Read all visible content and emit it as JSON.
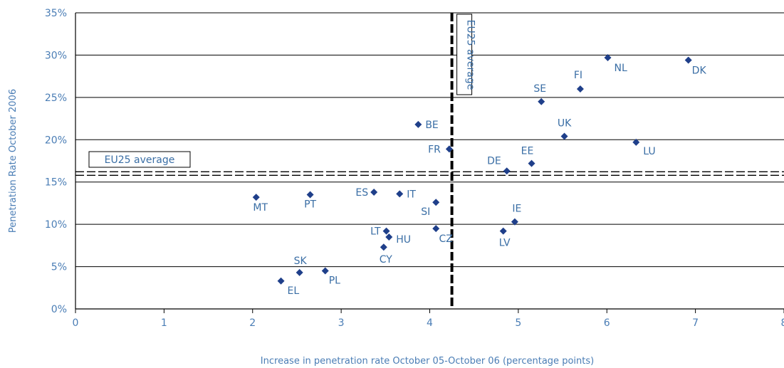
{
  "chart_data": {
    "type": "scatter",
    "xlabel": "Increase in penetration rate October 05-October 06 (percentage points)",
    "ylabel": "Penetration Rate October 2006",
    "xlim": [
      0,
      8
    ],
    "ylim": [
      0,
      35
    ],
    "x_ticks": [
      "0",
      "1",
      "2",
      "3",
      "4",
      "5",
      "6",
      "7",
      "8"
    ],
    "y_ticks": [
      "0%",
      "5%",
      "10%",
      "15%",
      "20%",
      "25%",
      "30%",
      "35%"
    ],
    "grid": "horizontal",
    "marker_color": "#1f3f8a",
    "reference_lines": {
      "horizontal": {
        "value": 16.0,
        "label": "EU25 average"
      },
      "vertical": {
        "value": 4.25,
        "label": "EU25 average"
      }
    },
    "points": [
      {
        "label": "DK",
        "x": 6.92,
        "y": 29.4
      },
      {
        "label": "NL",
        "x": 6.01,
        "y": 29.7
      },
      {
        "label": "FI",
        "x": 5.7,
        "y": 26.0
      },
      {
        "label": "SE",
        "x": 5.26,
        "y": 24.5
      },
      {
        "label": "UK",
        "x": 5.52,
        "y": 20.4
      },
      {
        "label": "LU",
        "x": 6.33,
        "y": 19.7
      },
      {
        "label": "BE",
        "x": 3.87,
        "y": 21.8
      },
      {
        "label": "FR",
        "x": 4.22,
        "y": 18.9
      },
      {
        "label": "EE",
        "x": 5.15,
        "y": 17.2
      },
      {
        "label": "DE",
        "x": 4.87,
        "y": 16.3
      },
      {
        "label": "MT",
        "x": 2.04,
        "y": 13.2
      },
      {
        "label": "PT",
        "x": 2.65,
        "y": 13.5
      },
      {
        "label": "ES",
        "x": 3.37,
        "y": 13.8
      },
      {
        "label": "IT",
        "x": 3.66,
        "y": 13.6
      },
      {
        "label": "SI",
        "x": 4.07,
        "y": 12.6
      },
      {
        "label": "IE",
        "x": 4.96,
        "y": 10.3
      },
      {
        "label": "LV",
        "x": 4.83,
        "y": 9.2
      },
      {
        "label": "CZ",
        "x": 4.07,
        "y": 9.5
      },
      {
        "label": "LT",
        "x": 3.51,
        "y": 9.2
      },
      {
        "label": "HU",
        "x": 3.54,
        "y": 8.5
      },
      {
        "label": "CY",
        "x": 3.48,
        "y": 7.3
      },
      {
        "label": "SK",
        "x": 2.53,
        "y": 4.3
      },
      {
        "label": "PL",
        "x": 2.82,
        "y": 4.5
      },
      {
        "label": "EL",
        "x": 2.32,
        "y": 3.3
      }
    ]
  }
}
